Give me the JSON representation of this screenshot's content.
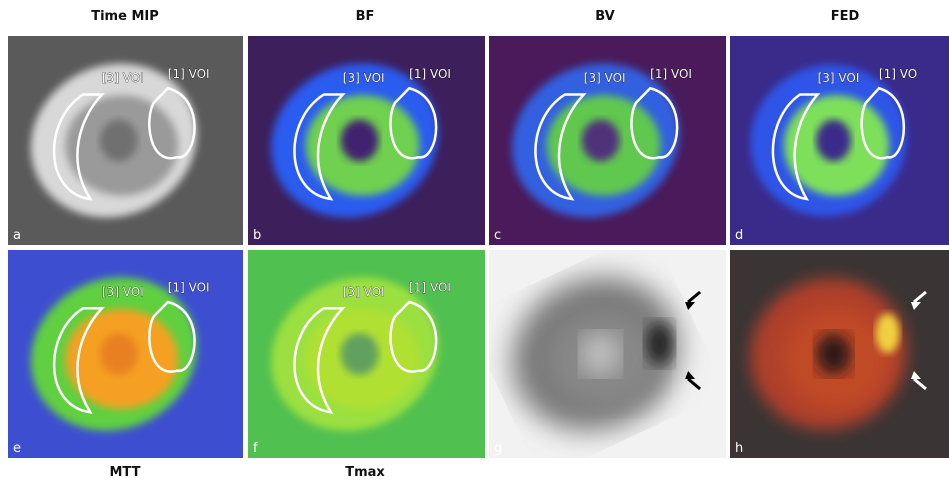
{
  "top_labels": [
    "Time MIP",
    "BF",
    "BV",
    "FED"
  ],
  "bottom_labels": [
    "MTT",
    "Tmax"
  ],
  "panels": [
    {
      "letter": "a",
      "voi_labels": [
        "[3] VOI",
        "[1] VOI"
      ]
    },
    {
      "letter": "b",
      "voi_labels": [
        "[3] VOI",
        "[1] VOI"
      ]
    },
    {
      "letter": "c",
      "voi_labels": [
        "[3] VOI",
        "[1] VOI"
      ]
    },
    {
      "letter": "d",
      "voi_labels": [
        "[3] VOI",
        "[1] VO"
      ]
    },
    {
      "letter": "e",
      "voi_labels": [
        "[3] VOI",
        "[1] VOI"
      ]
    },
    {
      "letter": "f",
      "voi_labels": [
        "[3] VOI",
        "[1] VOI"
      ]
    },
    {
      "letter": "g",
      "voi_labels": []
    },
    {
      "letter": "h",
      "voi_labels": []
    }
  ]
}
